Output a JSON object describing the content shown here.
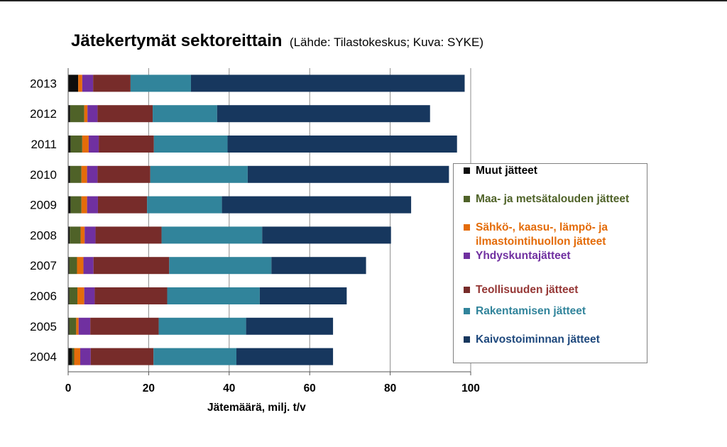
{
  "chart_data": {
    "type": "bar",
    "orientation": "horizontal",
    "stacked": true,
    "title": "Jätekertymät sektoreittain",
    "subtitle": "(Lähde: Tilastokeskus; Kuva: SYKE)",
    "xlabel": "Jätemäärä, milj. t/v",
    "xlim": [
      0,
      100
    ],
    "xticks": [
      "0",
      "20",
      "40",
      "60",
      "80",
      "100"
    ],
    "grid": "vertical",
    "legend_position": "right",
    "categories": [
      "2013",
      "2012",
      "2011",
      "2010",
      "2009",
      "2008",
      "2007",
      "2006",
      "2005",
      "2004"
    ],
    "series": [
      {
        "name": "Muut jätteet",
        "color": "#0d0d0d",
        "values": [
          2.5,
          0.5,
          0.6,
          0.5,
          0.6,
          0.4,
          0.3,
          0.3,
          0.3,
          1.0
        ]
      },
      {
        "name": "Maa- ja metsätalouden jätteet",
        "color": "#4f6228",
        "values": [
          0.0,
          3.5,
          2.9,
          2.8,
          2.7,
          2.7,
          1.9,
          2.0,
          1.7,
          0.5
        ]
      },
      {
        "name": "Sähkö-, kaasu-, lämpö- ja ilmastointihuollon jätteet",
        "color": "#e46c0a",
        "values": [
          1.0,
          0.8,
          1.6,
          1.4,
          1.4,
          1.0,
          1.6,
          1.7,
          0.6,
          1.5
        ]
      },
      {
        "name": "Yhdyskuntajätteet",
        "color": "#7030a0",
        "values": [
          2.7,
          2.5,
          2.5,
          2.6,
          2.7,
          2.7,
          2.5,
          2.6,
          2.9,
          2.6
        ]
      },
      {
        "name": "Teollisuuden jätteet",
        "color": "#772c2a",
        "values": [
          9.3,
          13.7,
          13.7,
          13.1,
          12.2,
          16.4,
          18.8,
          18.0,
          17.0,
          15.6
        ]
      },
      {
        "name": "Rakentamisen jätteet",
        "color": "#31849b",
        "values": [
          15.0,
          16.0,
          18.3,
          24.2,
          18.6,
          25.0,
          25.4,
          23.0,
          21.7,
          20.6
        ]
      },
      {
        "name": "Kaivostoiminnan jätteet",
        "color": "#17375e",
        "values": [
          68.0,
          52.9,
          57.0,
          50.0,
          47.0,
          32.0,
          23.5,
          21.6,
          21.6,
          24.0
        ]
      }
    ]
  },
  "legend": {
    "items": [
      {
        "label": "Muut jätteet",
        "text_color": "#000000",
        "swatch": "#0d0d0d"
      },
      {
        "label": "Maa- ja metsätalouden jätteet",
        "text_color": "#4f6228",
        "swatch": "#4f6228"
      },
      {
        "label": "Sähkö-, kaasu-, lämpö- ja ilmastointihuollon jätteet",
        "text_color": "#e46c0a",
        "swatch": "#e46c0a"
      },
      {
        "label": "Yhdyskuntajätteet",
        "text_color": "#7030a0",
        "swatch": "#7030a0"
      },
      {
        "label": "Teollisuuden jätteet",
        "text_color": "#953735",
        "swatch": "#772c2a"
      },
      {
        "label": "Rakentamisen jätteet",
        "text_color": "#31849b",
        "swatch": "#31849b"
      },
      {
        "label": "Kaivostoiminnan jätteet",
        "text_color": "#1f497d",
        "swatch": "#17375e"
      }
    ]
  }
}
